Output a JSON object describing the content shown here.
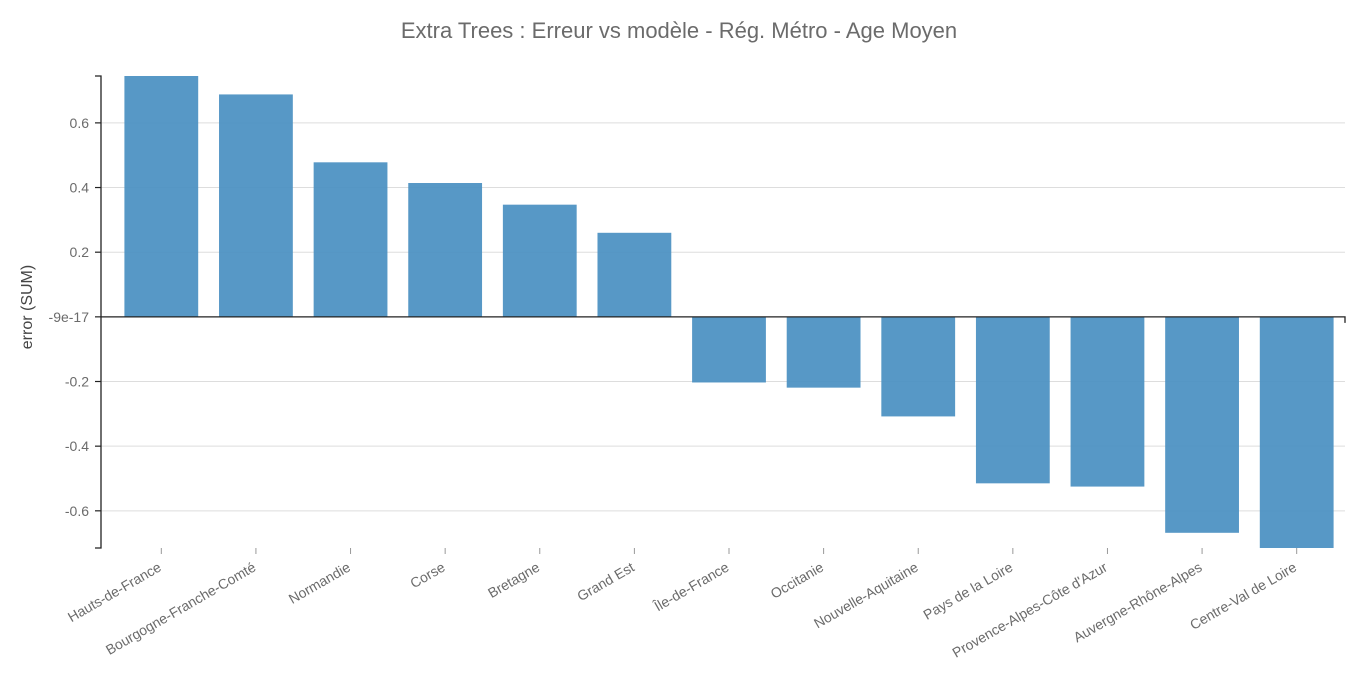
{
  "chart_data": {
    "type": "bar",
    "title": "Extra Trees : Erreur vs modèle - Rég. Métro - Age Moyen",
    "xlabel": "",
    "ylabel": "error (SUM)",
    "categories": [
      "Hauts-de-France",
      "Bourgogne-Franche-Comté",
      "Normandie",
      "Corse",
      "Bretagne",
      "Grand Est",
      "Île-de-France",
      "Occitanie",
      "Nouvelle-Aquitaine",
      "Pays de la Loire",
      "Provence-Alpes-Côte d'Azur",
      "Auvergne-Rhône-Alpes",
      "Centre-Val de Loire"
    ],
    "values": [
      0.745,
      0.688,
      0.478,
      0.414,
      0.347,
      0.26,
      -0.203,
      -0.219,
      -0.308,
      -0.515,
      -0.525,
      -0.668,
      -0.715
    ],
    "ylim": [
      -0.715,
      0.745
    ],
    "yticks": [
      {
        "value": -0.6,
        "label": "-0.6"
      },
      {
        "value": -0.4,
        "label": "-0.4"
      },
      {
        "value": -0.2,
        "label": "-0.2"
      },
      {
        "value": 0,
        "label": "-9e-17"
      },
      {
        "value": 0.2,
        "label": "0.2"
      },
      {
        "value": 0.4,
        "label": "0.4"
      },
      {
        "value": 0.6,
        "label": "0.6"
      }
    ],
    "grid": true,
    "bar_color": "#4a90c2"
  }
}
